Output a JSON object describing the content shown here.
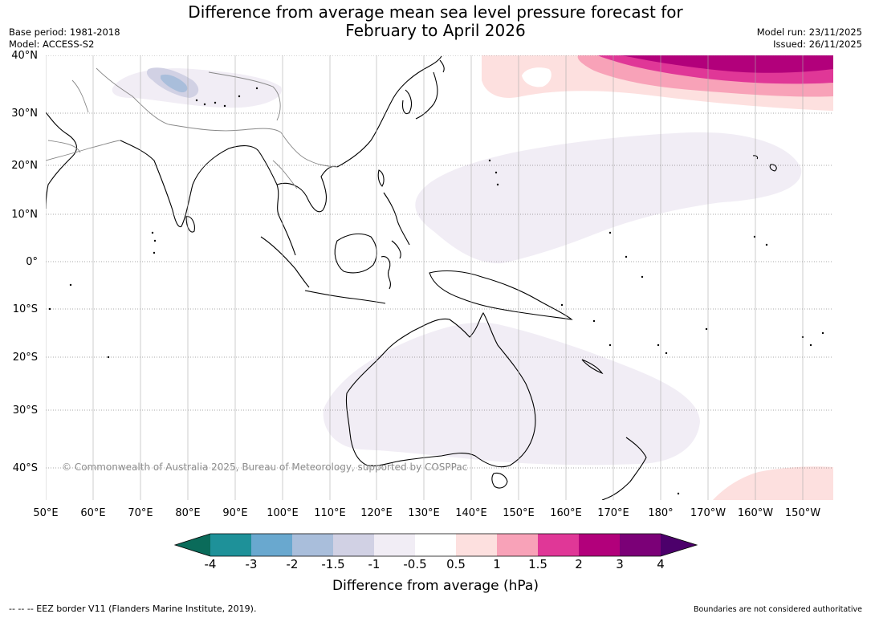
{
  "title_line1": "Difference from average mean sea level pressure forecast for",
  "title_line2": "February to April 2026",
  "base_period": "Base period: 1981-2018",
  "model": "Model: ACCESS-S2",
  "model_run": "Model run: 23/11/2025",
  "issued": "Issued: 26/11/2025",
  "copyright": "© Commonwealth of Australia 2025, Bureau of Meteorology, supported by COSPPac",
  "lat_ticks": [
    "40°N",
    "30°N",
    "20°N",
    "10°N",
    "0°",
    "10°S",
    "20°S",
    "30°S",
    "40°S"
  ],
  "lon_ticks": [
    "50°E",
    "60°E",
    "70°E",
    "80°E",
    "90°E",
    "100°E",
    "110°E",
    "120°E",
    "130°E",
    "140°E",
    "150°E",
    "160°E",
    "170°E",
    "180°",
    "170°W",
    "160°W",
    "150°W"
  ],
  "colorbar": {
    "label": "Difference from average (hPa)",
    "ticks": [
      "-4",
      "-3",
      "-2",
      "-1.5",
      "-1",
      "-0.5",
      "0.5",
      "1",
      "1.5",
      "2",
      "3",
      "4"
    ],
    "colors": {
      "below_min": "#0a6b5a",
      "lt_m3": "#1e9199",
      "m3_m2": "#69a8cf",
      "m2_m1_5": "#a9bedb",
      "m1_5_m1": "#d1d1e4",
      "m1_m0_5": "#f1edf5",
      "neutral": "#ffffff",
      "p0_5_1": "#fde0df",
      "p1_1_5": "#f8a2b8",
      "p1_5_2": "#e03797",
      "p2_3": "#b2007b",
      "p3_4": "#7b0077",
      "above_max": "#4c006b"
    }
  },
  "eez_note": "--  --  -- EEZ border V11 (Flanders Marine Institute, 2019).",
  "boundaries_note": "Boundaries are not considered authoritative"
}
